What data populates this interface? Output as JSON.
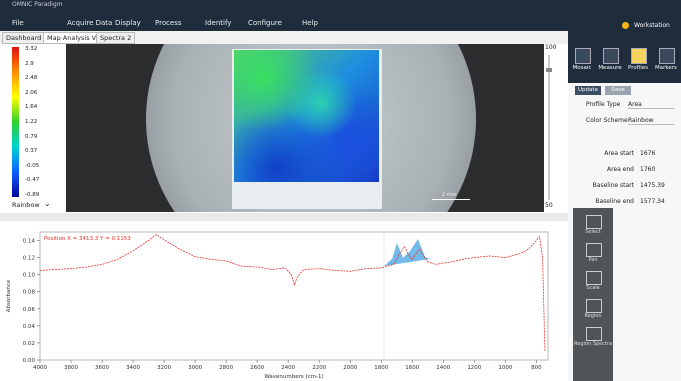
{
  "window": {
    "title": "OMNIC Paradigm",
    "workstation": "Workstation"
  },
  "menu": [
    "File",
    "Acquire Data",
    "Display",
    "Process",
    "Identify",
    "Configure",
    "Help"
  ],
  "tabs": [
    "Dashboard",
    "Map Analysis View",
    "Spectra 2"
  ],
  "map": {
    "colorbar": [
      3.32,
      2.9,
      2.48,
      2.06,
      1.64,
      1.22,
      0.79,
      0.37,
      -0.05,
      -0.47,
      -0.89
    ],
    "color_scheme": "Rainbow",
    "scale_bar": "2 mm",
    "zoom_top": "100",
    "zoom_bottom": "50"
  },
  "panel": {
    "icons": [
      "Mosaic",
      "Measure",
      "Profiles",
      "Markers"
    ],
    "buttons": [
      "Update",
      "Save"
    ],
    "fields": [
      {
        "label": "Profile Type",
        "value": "Area"
      },
      {
        "label": "Color Scheme",
        "value": "Rainbow"
      }
    ],
    "stats": [
      {
        "label": "Area start",
        "value": "1676"
      },
      {
        "label": "Area end",
        "value": "1760"
      },
      {
        "label": "Baseline start",
        "value": "1475.39"
      },
      {
        "label": "Baseline end",
        "value": "1577.34"
      }
    ]
  },
  "tools": [
    "Select",
    "Pan",
    "Scale",
    "Region",
    "Region Spectra"
  ],
  "chart_data": {
    "type": "line",
    "annotation": "Position X = 3413.3 Y = 0.1153",
    "x_label": "Wavenumbers (cm-1)",
    "y_label": "Absorbance",
    "color": "#e8312a",
    "x": [
      4000,
      3900,
      3800,
      3700,
      3600,
      3500,
      3400,
      3300,
      3250,
      3200,
      3100,
      3000,
      2900,
      2800,
      2700,
      2600,
      2500,
      2420,
      2380,
      2360,
      2340,
      2300,
      2200,
      2100,
      2000,
      1900,
      1800,
      1720,
      1680,
      1650,
      1620,
      1600,
      1570,
      1550,
      1520,
      1500,
      1450,
      1350,
      1250,
      1200,
      1100,
      1000,
      900,
      850,
      800,
      780,
      760,
      745
    ],
    "values": [
      0.105,
      0.106,
      0.107,
      0.109,
      0.112,
      0.118,
      0.128,
      0.14,
      0.147,
      0.141,
      0.13,
      0.121,
      0.118,
      0.116,
      0.11,
      0.109,
      0.106,
      0.108,
      0.1,
      0.088,
      0.098,
      0.106,
      0.107,
      0.105,
      0.104,
      0.107,
      0.108,
      0.112,
      0.125,
      0.133,
      0.122,
      0.118,
      0.126,
      0.13,
      0.12,
      0.115,
      0.112,
      0.115,
      0.119,
      0.12,
      0.122,
      0.12,
      0.125,
      0.13,
      0.14,
      0.145,
      0.12,
      0.01
    ],
    "xlim": [
      4000,
      725
    ],
    "ylim": [
      0,
      0.15
    ],
    "xticks": [
      4000,
      3800,
      3600,
      3400,
      3200,
      3000,
      2800,
      2600,
      2400,
      2200,
      2000,
      1800,
      1600,
      1400,
      1200,
      1000,
      800
    ],
    "yticks": [
      {
        "value": 0,
        "label": "0.00"
      },
      0.02,
      0.04,
      0.06,
      0.08,
      {
        "value": 0.1,
        "label": "0.10"
      },
      0.12,
      0.14
    ]
  }
}
